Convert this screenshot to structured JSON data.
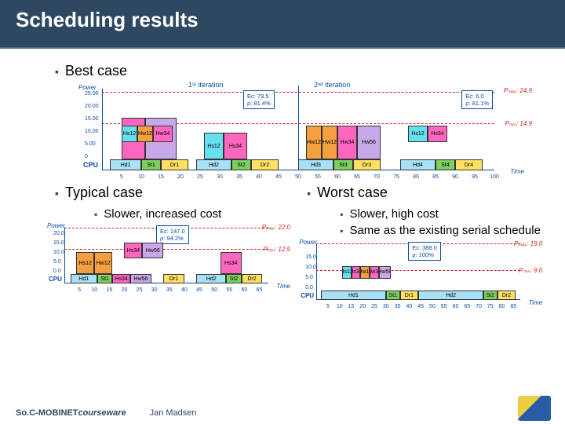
{
  "slide": {
    "title": "Scheduling results",
    "bullets": {
      "best": "Best case",
      "typical": "Typical case",
      "typical_sub": "Slower, increased cost",
      "worst": "Worst case",
      "worst_sub1": "Slower, high cost",
      "worst_sub2": "Same as the existing serial schedule"
    },
    "footer": {
      "courseware_a": "So.C-MOBINET ",
      "courseware_b": "courseware",
      "author": "Jan Madsen"
    }
  },
  "colors": {
    "pink": "#ff66c0",
    "magenta": "#e63fa0",
    "cyan": "#66dff0",
    "lightblue": "#a8e0f5",
    "yellow": "#ffe060",
    "orange": "#f5a040",
    "green": "#7cd060",
    "red": "#f03030",
    "lilac": "#c8a8e8",
    "blue": "#5aa0e8",
    "grey": "#dddddd"
  },
  "chart_best": {
    "ylabel": "Power",
    "xlabel": "Time",
    "cpu_label": "CPU",
    "x_ticks": [
      5,
      10,
      15,
      20,
      25,
      30,
      35,
      40,
      45,
      50,
      55,
      60,
      65,
      70,
      75,
      80,
      85,
      90,
      95,
      100
    ],
    "x_min": 0,
    "x_max": 100,
    "y_ticks": [
      0,
      "5.00",
      "10.00",
      "15.00",
      "20.00",
      "25.00"
    ],
    "y_max": 25,
    "iter1": "1ˢᵗ iteration",
    "iter2": "2ⁿᵈ iteration",
    "iter_split_x": 50,
    "pmax": "Pₘₐₓ: 24.9",
    "pmin": "Pₘᵢₙ: 14.9",
    "info1": {
      "ec": "Ec: 79.5",
      "p": "ρ: 81.4%"
    },
    "info2": {
      "ec": "Ec: 6.0",
      "p": "ρ: 81.1%"
    },
    "asic_blocks": [
      {
        "label": "Hs34",
        "x": 5,
        "w": 6,
        "h": 22,
        "color": "pink"
      },
      {
        "label": "Hw56",
        "x": 11,
        "w": 8,
        "h": 22,
        "color": "lilac"
      },
      {
        "label": "Hs12",
        "x": 5,
        "w": 4,
        "h": 9,
        "color": "cyan",
        "row": 1
      },
      {
        "label": "Hw12",
        "x": 9,
        "w": 4,
        "h": 9,
        "color": "orange",
        "row": 1
      },
      {
        "label": "Hw34",
        "x": 13,
        "w": 5,
        "h": 9,
        "color": "pink",
        "row": 1
      },
      {
        "label": "Hs12",
        "x": 26,
        "w": 5,
        "h": 14,
        "color": "cyan"
      },
      {
        "label": "Hs34",
        "x": 31,
        "w": 6,
        "h": 14,
        "color": "pink"
      },
      {
        "label": "Hw12",
        "x": 52,
        "w": 4,
        "h": 18,
        "color": "orange"
      },
      {
        "label": "Hw12",
        "x": 56,
        "w": 4,
        "h": 18,
        "color": "orange"
      },
      {
        "label": "Hw34",
        "x": 60,
        "w": 5,
        "h": 18,
        "color": "pink"
      },
      {
        "label": "Hw56",
        "x": 65,
        "w": 6,
        "h": 18,
        "color": "lilac"
      },
      {
        "label": "Hs12",
        "x": 78,
        "w": 5,
        "h": 9,
        "color": "cyan",
        "row": 1
      },
      {
        "label": "Hs34",
        "x": 83,
        "w": 5,
        "h": 9,
        "color": "pink",
        "row": 1
      }
    ],
    "cpu_blocks": [
      {
        "label": "Hd1",
        "x": 2,
        "w": 8,
        "color": "lightblue"
      },
      {
        "label": "St1",
        "x": 10,
        "w": 5,
        "color": "green"
      },
      {
        "label": "Dr1",
        "x": 15,
        "w": 7,
        "color": "yellow"
      },
      {
        "label": "Hd2",
        "x": 24,
        "w": 9,
        "color": "lightblue"
      },
      {
        "label": "St2",
        "x": 33,
        "w": 5,
        "color": "green"
      },
      {
        "label": "Dr2",
        "x": 38,
        "w": 7,
        "color": "yellow"
      },
      {
        "label": "Hd3",
        "x": 50,
        "w": 9,
        "color": "lightblue"
      },
      {
        "label": "St3",
        "x": 59,
        "w": 5,
        "color": "green"
      },
      {
        "label": "Dr3",
        "x": 64,
        "w": 7,
        "color": "yellow"
      },
      {
        "label": "Hd4",
        "x": 76,
        "w": 9,
        "color": "lightblue"
      },
      {
        "label": "St4",
        "x": 85,
        "w": 5,
        "color": "green"
      },
      {
        "label": "Dr4",
        "x": 90,
        "w": 7,
        "color": "yellow"
      }
    ]
  },
  "chart_typical": {
    "ylabel": "Power",
    "xlabel": "Time",
    "cpu_label": "CPU",
    "x_ticks": [
      5,
      10,
      15,
      20,
      25,
      30,
      35,
      40,
      45,
      50,
      55,
      60,
      65
    ],
    "x_min": 0,
    "x_max": 68,
    "y_ticks": [
      "0.0",
      "5.0",
      "10.0",
      "15.0",
      "20.0"
    ],
    "y_max": 22,
    "pmax": "Pₘₐₓ: 22.0",
    "pmin": "Pₘᵢₙ: 12.5",
    "info": {
      "ec": "Ec: 147.0",
      "p": "ρ: 94.2%"
    },
    "asic_blocks": [
      {
        "label": "Hs12",
        "x": 4,
        "w": 6,
        "h": 14,
        "color": "orange"
      },
      {
        "label": "Hw12",
        "x": 10,
        "w": 6,
        "h": 14,
        "color": "orange"
      },
      {
        "label": "Hs34",
        "x": 20,
        "w": 6,
        "h": 10,
        "color": "pink",
        "row": 1
      },
      {
        "label": "Hw56",
        "x": 26,
        "w": 7,
        "h": 10,
        "color": "lilac",
        "row": 1
      },
      {
        "label": "Hs34",
        "x": 52,
        "w": 7,
        "h": 14,
        "color": "pink"
      }
    ],
    "cpu_blocks": [
      {
        "label": "Hd1",
        "x": 2,
        "w": 9,
        "color": "lightblue"
      },
      {
        "label": "St1",
        "x": 11,
        "w": 5,
        "color": "green"
      },
      {
        "label": "Hs34",
        "x": 16,
        "w": 6,
        "color": "pink"
      },
      {
        "label": "Hw56",
        "x": 22,
        "w": 7,
        "color": "lilac"
      },
      {
        "label": "Dr1",
        "x": 33,
        "w": 7,
        "color": "yellow"
      },
      {
        "label": "Hd2",
        "x": 44,
        "w": 10,
        "color": "lightblue"
      },
      {
        "label": "St2",
        "x": 54,
        "w": 5,
        "color": "green"
      },
      {
        "label": "Dr2",
        "x": 59,
        "w": 7,
        "color": "yellow"
      }
    ]
  },
  "chart_worst": {
    "ylabel": "Power",
    "xlabel": "Time",
    "cpu_label": "CPU",
    "x_ticks": [
      5,
      10,
      15,
      20,
      25,
      30,
      35,
      40,
      45,
      50,
      55,
      60,
      65,
      70,
      75,
      80,
      85
    ],
    "x_min": 0,
    "x_max": 88,
    "y_ticks": [
      "0.0",
      "5.0",
      "10.0",
      "15.0"
    ],
    "y_max": 19,
    "pmax": "Pₘₐₓ: 19.0",
    "pmin": "Pₘᵢₙ: 9.0",
    "info": {
      "ec": "Ec: 388.0",
      "p": "ρ: 100%"
    },
    "asic_blocks": [
      {
        "label": "Hs12",
        "x": 11,
        "w": 4,
        "h": 7,
        "color": "cyan",
        "row": 1
      },
      {
        "label": "Hs34",
        "x": 15,
        "w": 4,
        "h": 7,
        "color": "pink",
        "row": 1
      },
      {
        "label": "Hw12",
        "x": 19,
        "w": 4,
        "h": 7,
        "color": "orange",
        "row": 1
      },
      {
        "label": "Hw34",
        "x": 23,
        "w": 4,
        "h": 7,
        "color": "pink",
        "row": 1
      },
      {
        "label": "Hw56",
        "x": 27,
        "w": 5,
        "h": 7,
        "color": "lilac",
        "row": 1
      }
    ],
    "cpu_blocks": [
      {
        "label": "Hd1",
        "x": 2,
        "w": 28,
        "color": "lightblue"
      },
      {
        "label": "St1",
        "x": 30,
        "w": 6,
        "color": "green"
      },
      {
        "label": "Dr1",
        "x": 36,
        "w": 8,
        "color": "yellow"
      },
      {
        "label": "Hd2",
        "x": 44,
        "w": 28,
        "color": "lightblue"
      },
      {
        "label": "St2",
        "x": 72,
        "w": 6,
        "color": "green"
      },
      {
        "label": "Dr2",
        "x": 78,
        "w": 8,
        "color": "yellow"
      }
    ]
  }
}
